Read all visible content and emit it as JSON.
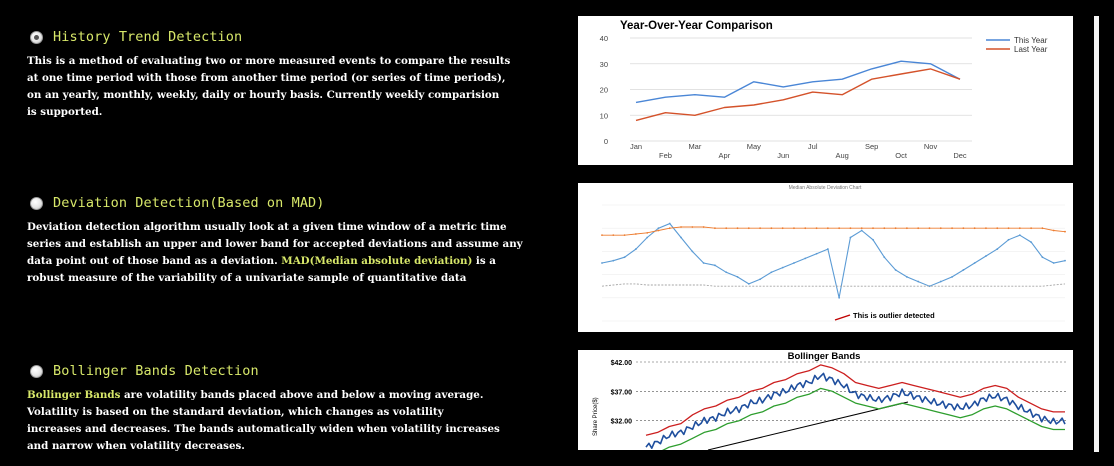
{
  "options": [
    {
      "title": "History Trend Detection",
      "selected": true,
      "lines": [
        "This is a method of evaluating two or more measured events to compare the results",
        "at one time period with those from another time period (or series of time periods),",
        "on an yearly, monthly, weekly, daily or hourly basis. Currently weekly comparision",
        "is supported."
      ]
    },
    {
      "title": "Deviation Detection(Based on MAD)",
      "selected": false,
      "lines": [
        "Deviation detection algorithm usually look at a given time window of a metric time",
        "series and establish an upper and lower band for accepted deviations and assume any",
        "data point out of those band as a deviation.",
        "robust measure of the variability of a univariate sample of quantitative data"
      ],
      "highlight": "MAD(Median absolute deviation)",
      "line3_after": " is a"
    },
    {
      "title": "Bollinger Bands Detection",
      "selected": false,
      "highlight": "Bollinger Bands",
      "line1_after": " are volatility bands placed above and below a moving average.",
      "lines": [
        "Volatility is based on the standard deviation, which changes as volatility",
        "increases and decreases. The bands automatically widen when volatility increases",
        "and narrow when volatility decreases."
      ]
    }
  ],
  "charts": {
    "yoy": {
      "title": "Year-Over-Year Comparison",
      "legend": [
        "This Year",
        "Last Year"
      ],
      "colors": {
        "this_year": "#4a86d6",
        "last_year": "#d4522a"
      },
      "y_ticks": [
        0,
        10,
        20,
        30,
        40
      ],
      "x_ticks_top": [
        "Jan",
        "Mar",
        "May",
        "Jul",
        "Sep",
        "Nov"
      ],
      "x_ticks_bottom": [
        "Feb",
        "Apr",
        "Jun",
        "Aug",
        "Oct",
        "Dec"
      ]
    },
    "mad": {
      "title": "Median Absolute Deviation Chart",
      "annotation": "This is outlier detected",
      "colors": {
        "series": "#5b9bd5",
        "upper": "#ed7d31",
        "lower": "#a5a5a5"
      }
    },
    "bollinger": {
      "title": "Bollinger Bands",
      "y_ticks": [
        "$42.00",
        "$37.00",
        "$32.00"
      ],
      "y_label": "Share Price($)",
      "colors": {
        "upper": "#cc1f1f",
        "lower": "#2e9e2e",
        "price": "#1f4f9e"
      }
    }
  },
  "chart_data": [
    {
      "type": "line",
      "title": "Year-Over-Year Comparison",
      "categories": [
        "Jan",
        "Feb",
        "Mar",
        "Apr",
        "May",
        "Jun",
        "Jul",
        "Aug",
        "Sep",
        "Oct",
        "Nov",
        "Dec"
      ],
      "series": [
        {
          "name": "This Year",
          "values": [
            15,
            17,
            18,
            17,
            23,
            21,
            23,
            24,
            28,
            31,
            30,
            24
          ]
        },
        {
          "name": "Last Year",
          "values": [
            8,
            11,
            10,
            13,
            14,
            16,
            19,
            18,
            24,
            26,
            28,
            24
          ]
        }
      ],
      "ylim": [
        0,
        40
      ]
    },
    {
      "type": "line",
      "title": "Median Absolute Deviation Chart",
      "series": [
        {
          "name": "",
          "values": [
            50,
            52,
            55,
            62,
            72,
            80,
            84,
            72,
            60,
            50,
            48,
            42,
            38,
            32,
            36,
            42,
            46,
            50,
            54,
            58,
            62,
            20,
            72,
            78,
            70,
            55,
            44,
            38,
            34,
            30,
            34,
            38,
            44,
            50,
            56,
            62,
            70,
            74,
            68,
            55,
            50,
            52
          ]
        },
        {
          "name": "",
          "values": [
            74,
            74,
            74,
            75,
            76,
            78,
            80,
            81,
            81,
            81,
            80,
            80,
            80,
            80,
            80,
            80,
            80,
            80,
            80,
            80,
            80,
            80,
            80,
            80,
            80,
            80,
            80,
            80,
            80,
            80,
            80,
            80,
            80,
            80,
            80,
            80,
            80,
            80,
            80,
            80,
            78,
            77
          ]
        },
        {
          "name": "",
          "values": [
            30,
            31,
            32,
            32,
            31,
            31,
            31,
            31,
            31,
            31,
            30,
            30,
            30,
            30,
            30,
            30,
            30,
            30,
            30,
            30,
            30,
            30,
            30,
            30,
            30,
            30,
            30,
            30,
            30,
            30,
            30,
            30,
            30,
            30,
            30,
            30,
            30,
            30,
            30,
            30,
            31,
            32
          ]
        }
      ],
      "annotations": [
        "This is outlier detected"
      ]
    },
    {
      "type": "line",
      "title": "Bollinger Bands",
      "ylabel": "Share Price($)",
      "y_ticks": [
        "$42.00",
        "$37.00",
        "$32.00"
      ],
      "series": [
        {
          "name": "",
          "values": [
            29.5,
            30,
            31,
            31.5,
            33,
            34,
            34.5,
            35.5,
            36,
            37,
            37.5,
            38.5,
            39,
            40,
            40.5,
            41.5,
            41,
            40,
            38.5,
            38,
            37.5,
            38,
            38.5,
            38,
            37.5,
            37,
            36.5,
            36,
            36.5,
            37.5,
            38,
            37.5,
            36,
            35,
            34,
            33.5,
            33.5
          ]
        },
        {
          "name": "",
          "values": [
            26,
            26.5,
            27.5,
            28,
            29,
            30,
            30.5,
            31.5,
            32,
            33,
            33.5,
            34.5,
            35,
            36,
            36.5,
            37.5,
            37,
            36,
            35,
            34.5,
            34,
            34.5,
            35,
            34.5,
            34,
            33.5,
            33,
            32.5,
            33,
            34,
            34.5,
            34,
            33,
            32,
            31,
            30.5,
            30.5
          ]
        },
        {
          "name": "",
          "values": [
            27.5,
            28.3,
            29.5,
            30,
            31,
            32,
            32.5,
            33.5,
            34,
            35,
            35.5,
            36.5,
            37,
            38,
            38.5,
            39.7,
            39,
            38,
            36.5,
            36,
            35.5,
            36,
            36.8,
            36.2,
            35.6,
            35,
            34.6,
            34.2,
            34.6,
            35.7,
            36.2,
            35.6,
            34.4,
            33.4,
            32.4,
            31.8,
            32
          ]
        }
      ]
    }
  ]
}
